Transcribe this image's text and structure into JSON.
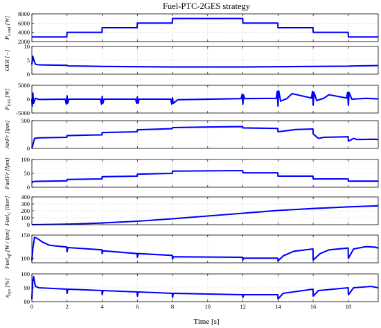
{
  "chart_data": {
    "type": "line",
    "title": "Fuel-PTC-2GES strategy",
    "xlabel": "Time [s]",
    "xlim": [
      0,
      19.7
    ],
    "x_ticks": [
      0,
      2,
      4,
      6,
      8,
      10,
      12,
      14,
      16,
      18
    ],
    "x_tick_labels": [
      "0",
      "2",
      "4",
      "6",
      "8",
      "10",
      "12",
      "14",
      "16",
      "18"
    ],
    "grid": true,
    "line_color": "#0000ff",
    "panels": [
      {
        "ylabel": "P_Load [W]",
        "ylim": [
          2000,
          8000
        ],
        "yticks": [
          2000,
          4000,
          6000,
          8000
        ],
        "ytick_labels": [
          "2000",
          "4000",
          "6000",
          "8000"
        ],
        "x": [
          0,
          1.99,
          2.0,
          3.99,
          4.0,
          5.99,
          6.0,
          7.99,
          8.0,
          11.99,
          12.0,
          13.99,
          14.0,
          15.99,
          16.0,
          17.99,
          18.0,
          19.7
        ],
        "y": [
          3000,
          3000,
          4000,
          4000,
          5000,
          5000,
          6000,
          6000,
          7000,
          7000,
          6000,
          6000,
          5000,
          5000,
          4000,
          4000,
          3000,
          3000
        ]
      },
      {
        "ylabel": "OER [−]",
        "ylim": [
          0,
          10
        ],
        "yticks": [
          0,
          5,
          10
        ],
        "ytick_labels": [
          "0",
          "5",
          "10"
        ],
        "x": [
          0,
          0.05,
          0.12,
          0.2,
          0.35,
          1.0,
          2.0,
          2.05,
          4.0,
          6.0,
          8.0,
          12.0,
          14.0,
          16.0,
          18.0,
          18.5,
          19.7
        ],
        "y": [
          3.5,
          6.5,
          5.0,
          3.6,
          3.4,
          3.3,
          3.2,
          3.0,
          2.8,
          2.7,
          2.6,
          2.6,
          2.7,
          2.8,
          2.9,
          3.0,
          3.1
        ]
      },
      {
        "ylabel": "P_ESS [W]",
        "ylim": [
          -5000,
          5000
        ],
        "yticks": [
          -5000,
          0,
          5000
        ],
        "ytick_labels": [
          "-5000",
          "0",
          "5000"
        ],
        "x": [
          0,
          0.02,
          0.06,
          0.1,
          0.2,
          0.4,
          1.9,
          1.96,
          2.0,
          2.04,
          2.1,
          3.9,
          3.96,
          4.0,
          4.04,
          4.1,
          5.9,
          5.96,
          6.0,
          6.04,
          6.1,
          7.9,
          7.96,
          8.0,
          8.04,
          8.3,
          11.9,
          11.96,
          12.0,
          12.04,
          12.1,
          13.9,
          13.96,
          14.0,
          14.04,
          14.15,
          14.5,
          14.8,
          15.9,
          15.96,
          16.0,
          16.04,
          16.2,
          16.6,
          16.9,
          17.9,
          17.96,
          18.0,
          18.04,
          18.2,
          19.0,
          19.7
        ],
        "y": [
          0,
          -2500,
          2200,
          -1500,
          300,
          -100,
          0,
          -1800,
          1200,
          -1500,
          0,
          0,
          -1800,
          1000,
          -1500,
          0,
          0,
          -1500,
          800,
          -1500,
          0,
          0,
          -1800,
          500,
          -1500,
          -200,
          200,
          1800,
          -1800,
          1500,
          200,
          300,
          2800,
          -2500,
          3000,
          -700,
          200,
          2000,
          400,
          2800,
          -2200,
          2500,
          -500,
          300,
          1600,
          400,
          2500,
          -2200,
          2400,
          0,
          300,
          100
        ]
      },
      {
        "ylabel": "AirFr [lpm]",
        "ylim": [
          0,
          500
        ],
        "yticks": [
          0,
          500
        ],
        "ytick_labels": [
          "0",
          "500"
        ],
        "x": [
          0,
          0.05,
          0.15,
          0.4,
          1.99,
          2.0,
          3.99,
          4.0,
          5.99,
          6.0,
          7.99,
          8.0,
          10.0,
          11.99,
          12.0,
          13.99,
          14.0,
          14.5,
          15.0,
          15.99,
          16.0,
          16.3,
          16.6,
          17.99,
          18.0,
          18.3,
          18.5,
          19.5,
          19.7
        ],
        "y": [
          0,
          60,
          180,
          190,
          200,
          230,
          245,
          285,
          300,
          335,
          355,
          375,
          385,
          392,
          370,
          360,
          300,
          320,
          340,
          350,
          260,
          180,
          200,
          210,
          130,
          180,
          160,
          165,
          160
        ]
      },
      {
        "ylabel": "FuelFr [lpm]",
        "ylim": [
          0,
          100
        ],
        "yticks": [
          0,
          50,
          100
        ],
        "ytick_labels": [
          "0",
          "50",
          "100"
        ],
        "x": [
          0,
          0.05,
          0.2,
          1.99,
          2.0,
          3.99,
          4.0,
          5.99,
          6.0,
          7.99,
          8.0,
          11.99,
          12.0,
          13.99,
          14.0,
          15.99,
          16.0,
          17.99,
          18.0,
          19.7
        ],
        "y": [
          15,
          20,
          21,
          23,
          28,
          30,
          38,
          40,
          47,
          50,
          58,
          60,
          52,
          52,
          40,
          40,
          30,
          30,
          22,
          22
        ]
      },
      {
        "ylabel": "Fuel_C [liter]",
        "ylim": [
          0,
          400
        ],
        "yticks": [
          0,
          100,
          200,
          300,
          400
        ],
        "ytick_labels": [
          "0",
          "100",
          "200",
          "300",
          "400"
        ],
        "x": [
          0,
          2,
          4,
          6,
          8,
          10,
          12,
          14,
          16,
          18,
          19.7
        ],
        "y": [
          0,
          7,
          24,
          50,
          85,
          125,
          165,
          205,
          233,
          257,
          272
        ]
      },
      {
        "ylabel": "Fuel_eff [W / lpm]",
        "ylim": [
          90,
          150
        ],
        "yticks": [
          100,
          150
        ],
        "ytick_labels": [
          "100",
          "150"
        ],
        "x": [
          0,
          0.05,
          0.15,
          0.3,
          0.6,
          1.0,
          1.99,
          2.0,
          2.05,
          3.99,
          4.0,
          4.05,
          5.99,
          6.0,
          6.05,
          7.99,
          8.0,
          8.05,
          11.99,
          12.0,
          12.05,
          13.99,
          14.0,
          14.3,
          14.9,
          15.99,
          16.0,
          16.4,
          16.9,
          17.99,
          18.0,
          18.3,
          19.0,
          19.5,
          19.7
        ],
        "y": [
          95,
          120,
          145,
          143,
          135,
          128,
          124,
          114,
          123,
          118,
          110,
          116,
          110,
          102,
          110,
          106,
          98,
          103,
          102,
          96,
          100,
          100,
          94,
          105,
          115,
          120,
          96,
          110,
          118,
          122,
          100,
          120,
          125,
          124,
          122
        ]
      },
      {
        "ylabel": "η_sys [%]",
        "ylim": [
          80,
          100
        ],
        "yticks": [
          80,
          90,
          100
        ],
        "ytick_labels": [
          "80",
          "90",
          "100"
        ],
        "x": [
          0,
          0.05,
          0.1,
          0.2,
          0.4,
          1.99,
          2.0,
          2.05,
          3.99,
          4.0,
          4.05,
          5.99,
          6.0,
          6.05,
          7.99,
          8.0,
          8.05,
          11.99,
          12.0,
          12.05,
          13.99,
          14.0,
          14.3,
          15.99,
          16.0,
          16.3,
          17.99,
          18.0,
          18.3,
          19.3,
          19.7
        ],
        "y": [
          82,
          95,
          98,
          91,
          90,
          89,
          86,
          89,
          88,
          85,
          88,
          87,
          84,
          87,
          86,
          83,
          86,
          85,
          83,
          85,
          85,
          82,
          86,
          89,
          84,
          88,
          90,
          85,
          90,
          91,
          90
        ]
      }
    ]
  }
}
